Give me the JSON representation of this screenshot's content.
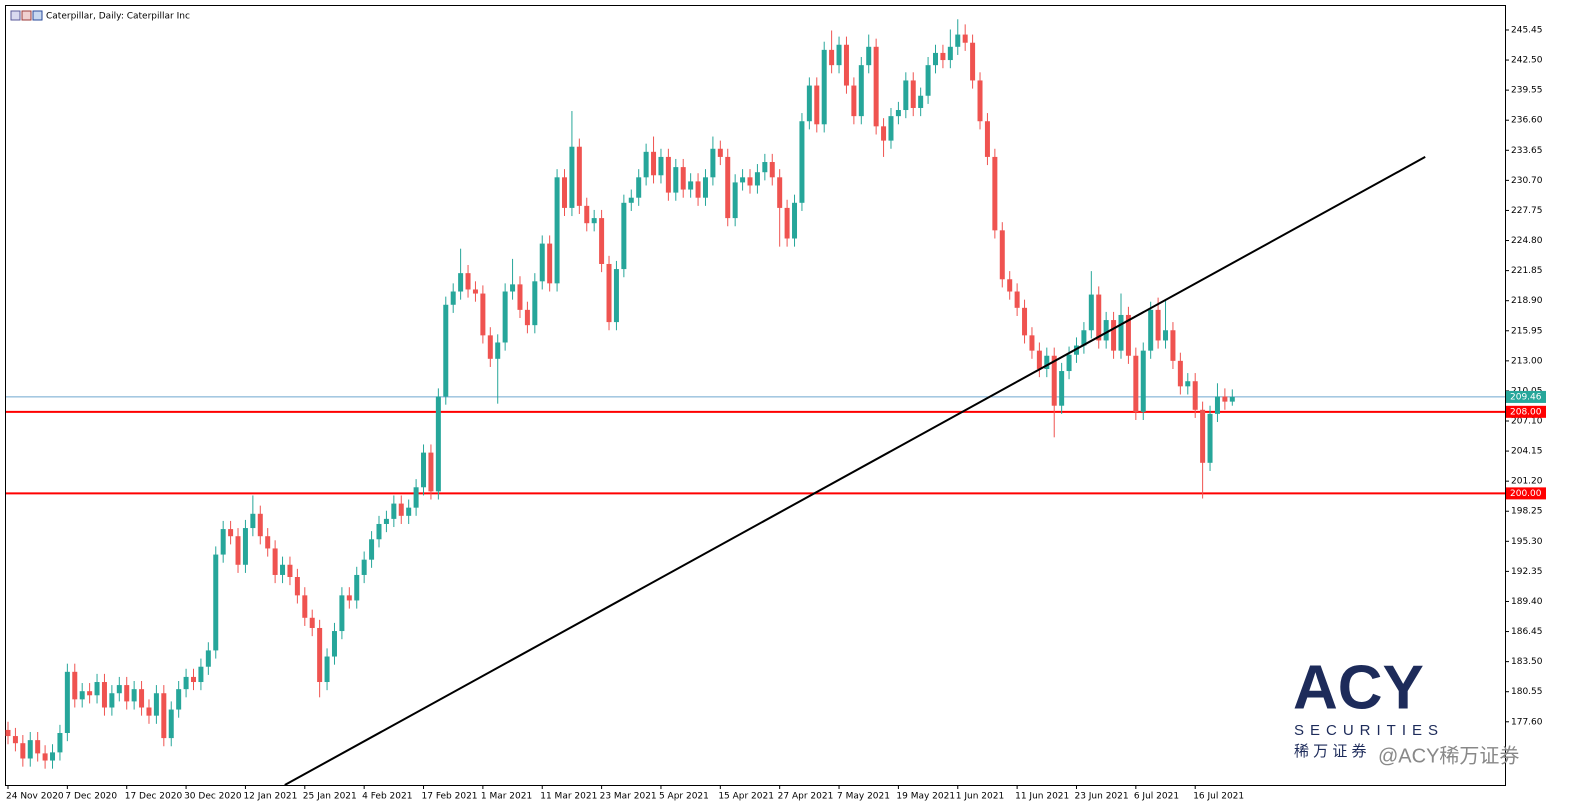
{
  "chart_data": {
    "type": "candlestick",
    "title": "Caterpillar, Daily:  Caterpillar Inc",
    "categories": [
      "24 Nov 2020",
      null,
      null,
      null,
      null,
      null,
      null,
      null,
      "7 Dec 2020",
      null,
      null,
      null,
      null,
      null,
      null,
      null,
      "17 Dec 2020",
      null,
      null,
      null,
      null,
      null,
      null,
      null,
      "30 Dec 2020",
      null,
      null,
      null,
      null,
      null,
      null,
      null,
      "12 Jan 2021",
      null,
      null,
      null,
      null,
      null,
      null,
      null,
      "25 Jan 2021",
      null,
      null,
      null,
      null,
      null,
      null,
      null,
      "4 Feb 2021",
      null,
      null,
      null,
      null,
      null,
      null,
      null,
      "17 Feb 2021",
      null,
      null,
      null,
      null,
      null,
      null,
      null,
      "1 Mar 2021",
      null,
      null,
      null,
      null,
      null,
      null,
      null,
      "11 Mar 2021",
      null,
      null,
      null,
      null,
      null,
      null,
      null,
      "23 Mar 2021",
      null,
      null,
      null,
      null,
      null,
      null,
      null,
      "5 Apr 2021",
      null,
      null,
      null,
      null,
      null,
      null,
      null,
      "15 Apr 2021",
      null,
      null,
      null,
      null,
      null,
      null,
      null,
      "27 Apr 2021",
      null,
      null,
      null,
      null,
      null,
      null,
      null,
      "7 May 2021",
      null,
      null,
      null,
      null,
      null,
      null,
      null,
      "19 May 2021",
      null,
      null,
      null,
      null,
      null,
      null,
      null,
      "1 Jun 2021",
      null,
      null,
      null,
      null,
      null,
      null,
      null,
      "11 Jun 2021",
      null,
      null,
      null,
      null,
      null,
      null,
      null,
      "23 Jun 2021",
      null,
      null,
      null,
      null,
      null,
      null,
      null,
      "6 Jul 2021",
      null,
      null,
      null,
      null,
      null,
      null,
      null,
      "16 Jul 2021",
      null,
      null,
      null,
      null,
      null
    ],
    "open": [
      176.8,
      176.2,
      175.5,
      174.0,
      175.8,
      174.5,
      173.8,
      174.6,
      176.5,
      182.5,
      179.8,
      180.6,
      180.2,
      181.5,
      179.0,
      180.4,
      181.2,
      179.6,
      180.8,
      179.0,
      178.2,
      180.4,
      176.0,
      178.8,
      180.8,
      182.0,
      181.5,
      183.0,
      184.6,
      194.0,
      196.5,
      195.8,
      193.0,
      196.6,
      198.0,
      195.8,
      194.6,
      192.0,
      193.0,
      191.8,
      190.0,
      187.8,
      186.8,
      181.5,
      184.0,
      186.5,
      190.0,
      189.5,
      192.0,
      193.5,
      195.5,
      197.0,
      197.5,
      199.0,
      197.8,
      198.6,
      200.6,
      204.0,
      200.2,
      209.5,
      218.5,
      219.8,
      221.6,
      220.0,
      219.6,
      215.5,
      213.2,
      214.8,
      219.8,
      220.5,
      218.0,
      216.5,
      220.8,
      224.5,
      220.6,
      231.0,
      228.0,
      234.0,
      228.2,
      226.5,
      227.0,
      222.5,
      216.8,
      222.0,
      228.5,
      229.0,
      231.0,
      233.5,
      231.2,
      233.0,
      229.5,
      232.0,
      229.8,
      230.6,
      229.0,
      231.0,
      233.8,
      233.0,
      227.0,
      230.5,
      231.0,
      230.2,
      231.5,
      232.5,
      231.0,
      228.0,
      225.0,
      228.5,
      236.5,
      240.0,
      236.2,
      243.5,
      242.0,
      244.0,
      240.0,
      237.0,
      242.0,
      243.8,
      236.0,
      234.6,
      237.0,
      237.6,
      240.5,
      237.8,
      239.0,
      242.0,
      243.2,
      242.5,
      243.8,
      245.0,
      244.2,
      240.5,
      236.5,
      233.0,
      225.8,
      221.0,
      219.8,
      218.2,
      215.5,
      214.0,
      212.2,
      213.5,
      208.6,
      212.0,
      213.6,
      214.5,
      216.0,
      219.5,
      215.0,
      217.0,
      214.0,
      217.5,
      213.5,
      208.0,
      214.0,
      218.0,
      215.0,
      216.0,
      213.0,
      210.5,
      211.0,
      208.2,
      203.0,
      207.8,
      209.5,
      209.0
    ],
    "high": [
      177.6,
      177.0,
      176.3,
      176.6,
      176.6,
      175.3,
      175.4,
      177.3,
      183.3,
      183.3,
      181.4,
      181.4,
      182.3,
      182.3,
      181.2,
      182.0,
      182.0,
      181.6,
      181.6,
      179.8,
      181.2,
      181.2,
      179.6,
      181.6,
      182.8,
      182.8,
      183.8,
      185.4,
      194.8,
      197.3,
      197.3,
      196.6,
      197.4,
      199.8,
      198.8,
      196.6,
      195.4,
      193.8,
      193.8,
      192.6,
      190.8,
      188.6,
      187.6,
      184.8,
      187.3,
      190.8,
      190.8,
      192.8,
      194.3,
      196.3,
      197.8,
      198.3,
      199.8,
      199.8,
      199.4,
      201.4,
      204.8,
      204.8,
      210.3,
      219.3,
      220.6,
      224.0,
      222.4,
      220.8,
      220.4,
      216.3,
      215.6,
      220.6,
      223.0,
      221.3,
      218.8,
      221.6,
      225.3,
      225.3,
      231.8,
      231.8,
      237.5,
      234.8,
      229.0,
      227.8,
      227.8,
      223.3,
      222.8,
      229.3,
      229.8,
      231.8,
      234.3,
      235.0,
      233.8,
      233.8,
      232.8,
      232.8,
      231.4,
      231.4,
      231.8,
      235.0,
      234.6,
      233.8,
      231.3,
      231.8,
      231.8,
      232.3,
      233.3,
      233.3,
      231.8,
      228.8,
      229.3,
      237.3,
      240.8,
      240.8,
      244.3,
      245.4,
      244.8,
      244.8,
      240.8,
      242.8,
      245.0,
      244.6,
      236.8,
      237.8,
      238.4,
      241.3,
      241.3,
      239.8,
      242.8,
      244.0,
      244.0,
      245.5,
      246.5,
      246.0,
      245.0,
      241.3,
      237.3,
      233.8,
      226.6,
      221.8,
      220.6,
      219.0,
      216.3,
      214.8,
      214.3,
      214.3,
      212.8,
      214.4,
      215.3,
      216.8,
      221.8,
      220.3,
      217.8,
      217.8,
      219.6,
      218.3,
      214.3,
      214.8,
      218.8,
      219.2,
      219.0,
      216.8,
      213.8,
      211.8,
      211.8,
      209.0,
      208.6,
      210.8,
      210.3,
      210.2
    ],
    "low": [
      175.4,
      174.7,
      173.2,
      173.2,
      173.7,
      173.0,
      173.0,
      173.8,
      175.7,
      179.0,
      179.0,
      179.4,
      179.4,
      178.2,
      178.2,
      179.6,
      178.8,
      178.8,
      178.2,
      177.4,
      177.4,
      175.2,
      175.2,
      178.0,
      180.0,
      180.7,
      180.7,
      182.2,
      183.8,
      193.2,
      195.0,
      192.2,
      192.2,
      195.8,
      195.0,
      193.8,
      191.2,
      191.2,
      191.0,
      189.2,
      187.0,
      186.0,
      180.0,
      180.7,
      183.2,
      185.7,
      188.7,
      188.7,
      191.2,
      192.7,
      194.7,
      196.2,
      196.7,
      197.0,
      197.0,
      197.8,
      199.8,
      199.4,
      199.4,
      208.7,
      217.7,
      219.0,
      219.2,
      218.8,
      214.7,
      212.4,
      208.8,
      214.0,
      219.0,
      217.2,
      215.7,
      215.7,
      220.0,
      219.8,
      219.8,
      227.2,
      227.2,
      227.4,
      225.7,
      225.7,
      221.7,
      216.0,
      216.0,
      221.2,
      227.7,
      228.2,
      230.2,
      230.4,
      230.4,
      228.7,
      228.7,
      229.0,
      229.0,
      228.2,
      228.2,
      230.2,
      232.2,
      226.2,
      226.2,
      229.7,
      229.4,
      229.4,
      230.7,
      230.2,
      224.2,
      224.2,
      224.2,
      227.7,
      235.7,
      235.4,
      235.4,
      241.2,
      241.2,
      239.2,
      236.2,
      236.2,
      241.2,
      235.2,
      233.0,
      233.8,
      236.2,
      236.8,
      237.0,
      237.0,
      238.2,
      241.2,
      241.7,
      241.7,
      243.0,
      243.4,
      239.7,
      235.7,
      232.2,
      225.0,
      220.2,
      219.0,
      217.4,
      214.7,
      213.2,
      211.4,
      211.4,
      205.5,
      207.8,
      211.2,
      212.8,
      213.7,
      215.2,
      214.2,
      214.2,
      213.2,
      213.2,
      212.7,
      207.2,
      207.2,
      213.2,
      214.2,
      214.2,
      212.2,
      209.7,
      209.7,
      207.4,
      199.5,
      202.2,
      207.0,
      208.2,
      208.6
    ],
    "close": [
      176.2,
      175.5,
      174.0,
      175.8,
      174.5,
      173.8,
      174.6,
      176.5,
      182.5,
      179.8,
      180.6,
      180.2,
      181.5,
      179.0,
      180.4,
      181.2,
      179.6,
      180.8,
      179.0,
      178.2,
      180.4,
      176.0,
      178.8,
      180.8,
      182.0,
      181.5,
      183.0,
      184.6,
      194.0,
      196.5,
      195.8,
      193.0,
      196.6,
      198.0,
      195.8,
      194.6,
      192.0,
      193.0,
      191.8,
      190.0,
      187.8,
      186.8,
      181.5,
      184.0,
      186.5,
      190.0,
      189.5,
      192.0,
      193.5,
      195.5,
      197.0,
      197.5,
      199.0,
      197.8,
      198.6,
      200.6,
      204.0,
      200.2,
      209.5,
      218.5,
      219.8,
      221.6,
      220.0,
      219.6,
      215.5,
      213.2,
      214.8,
      219.8,
      220.5,
      218.0,
      216.5,
      220.8,
      224.5,
      220.6,
      231.0,
      228.0,
      234.0,
      228.2,
      226.5,
      227.0,
      222.5,
      216.8,
      222.0,
      228.5,
      229.0,
      231.0,
      233.5,
      231.2,
      233.0,
      229.5,
      232.0,
      229.8,
      230.6,
      229.0,
      231.0,
      233.8,
      233.0,
      227.0,
      230.5,
      231.0,
      230.2,
      231.5,
      232.5,
      231.0,
      228.0,
      225.0,
      228.5,
      236.5,
      240.0,
      236.2,
      243.5,
      242.0,
      244.0,
      240.0,
      237.0,
      242.0,
      243.8,
      236.0,
      234.6,
      237.0,
      237.6,
      240.5,
      237.8,
      239.0,
      242.0,
      243.2,
      242.5,
      243.8,
      245.0,
      244.2,
      240.5,
      236.5,
      233.0,
      225.8,
      221.0,
      219.8,
      218.2,
      215.5,
      214.0,
      212.2,
      213.5,
      208.6,
      212.0,
      213.6,
      214.5,
      216.0,
      219.5,
      215.0,
      217.0,
      214.0,
      217.5,
      213.5,
      208.0,
      214.0,
      218.0,
      215.0,
      216.0,
      213.0,
      210.5,
      211.0,
      208.2,
      203.0,
      207.8,
      209.5,
      209.0,
      209.46
    ],
    "up_color": "#26a69a",
    "down_color": "#ef5350",
    "ylim": [
      171.4,
      247.9
    ],
    "yticks": [
      245.45,
      {
        "value": 242.5,
        "label": "242.50"
      },
      239.55,
      {
        "value": 236.6,
        "label": "236.60"
      },
      233.65,
      {
        "value": 230.7,
        "label": "230.70"
      },
      227.75,
      {
        "value": 224.8,
        "label": "224.80"
      },
      221.85,
      {
        "value": 218.9,
        "label": "218.90"
      },
      215.95,
      {
        "value": 213,
        "label": "213.00"
      },
      210.05,
      {
        "value": 207.1,
        "label": "207.10"
      },
      204.15,
      {
        "value": 201.2,
        "label": "201.20"
      },
      198.25,
      {
        "value": 195.3,
        "label": "195.30"
      },
      192.35,
      {
        "value": 189.4,
        "label": "189.40"
      },
      186.45,
      {
        "value": 183.5,
        "label": "183.50"
      },
      180.55,
      {
        "value": 177.6,
        "label": "177.60"
      }
    ],
    "levels": [
      {
        "value": 208,
        "label": "208.00",
        "color": "#ff0000"
      },
      {
        "value": 200,
        "label": "200.00",
        "color": "#ff0000"
      }
    ],
    "price_line": {
      "value": 209.46,
      "color": "#6fa8cf",
      "label_color": "#26a69a"
    },
    "trendline": {
      "x": [
        37.3,
        191
      ],
      "y": [
        171.4,
        233.0
      ],
      "color": "#000000"
    }
  },
  "watermark": {
    "brand": "ACY",
    "tagline": "SECURITIES",
    "name_cn": "稀 万 证 券",
    "handle": "@ACY稀万证券"
  }
}
